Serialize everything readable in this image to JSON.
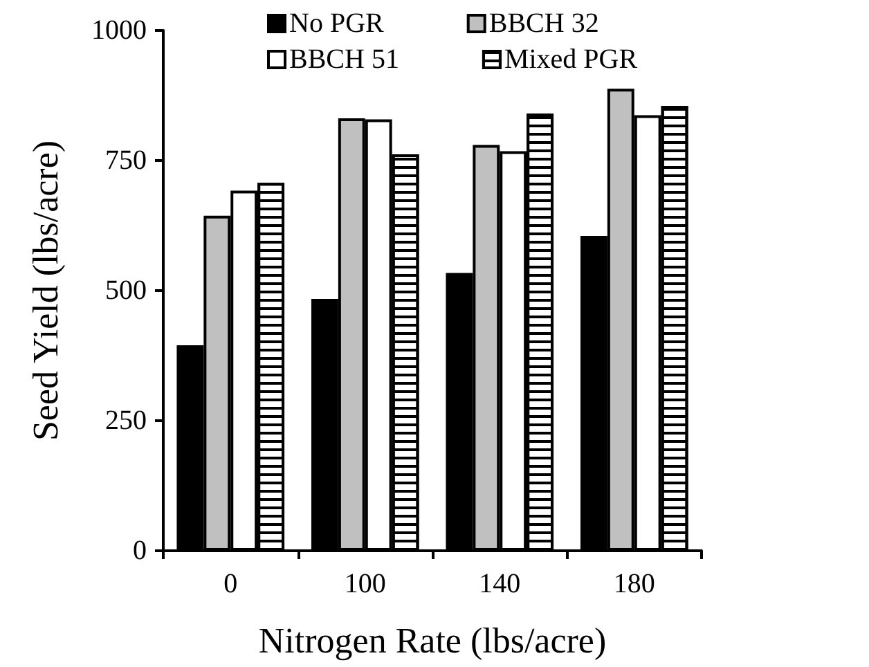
{
  "chart_data": {
    "type": "bar",
    "xlabel": "Nitrogen Rate (lbs/acre)",
    "ylabel": "Seed Yield (lbs/acre)",
    "categories": [
      "0",
      "100",
      "140",
      "180"
    ],
    "series": [
      {
        "name": "No PGR",
        "color": "#000000",
        "values": [
          395,
          484,
          534,
          605
        ]
      },
      {
        "name": "BBCH 32",
        "color": "#c0c0c0",
        "values": [
          644,
          831,
          780,
          888
        ]
      },
      {
        "name": "BBCH 51",
        "color": "#ffffff",
        "values": [
          692,
          829,
          768,
          837
        ]
      },
      {
        "name": "Mixed PGR",
        "color": "#ffffff",
        "values": [
          707,
          762,
          840,
          855
        ]
      }
    ],
    "ylim": [
      0,
      1000
    ],
    "yticks": [
      0,
      250,
      500,
      750,
      1000
    ],
    "grid": false,
    "legend": "top"
  }
}
